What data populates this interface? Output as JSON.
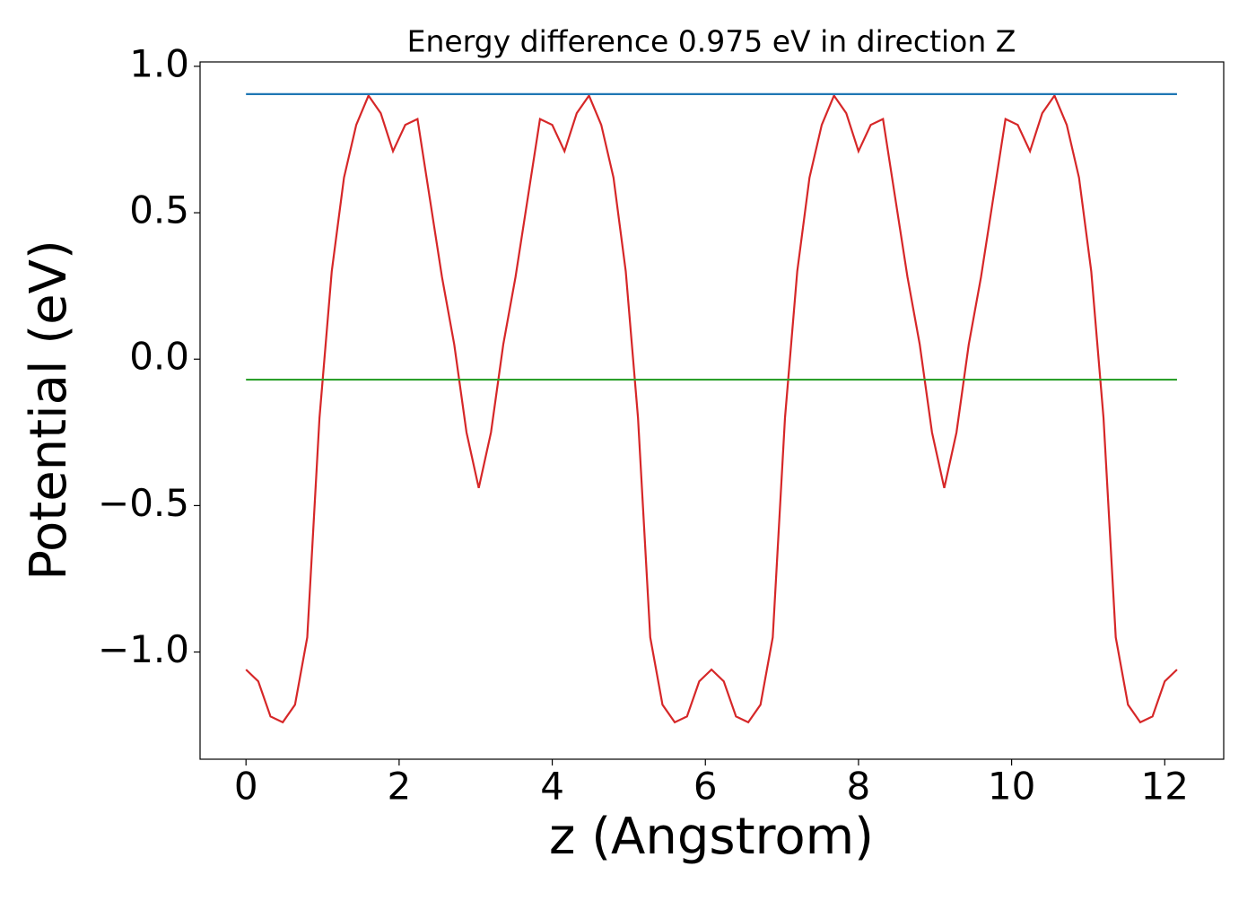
{
  "chart_data": {
    "type": "line",
    "title": "Energy difference 0.975 eV in direction Z",
    "xlabel": "z (Angstrom)",
    "ylabel": "Potential (eV)",
    "xlim": [
      -0.6,
      12.77
    ],
    "ylim": [
      -1.366,
      1.015
    ],
    "xticks": [
      0,
      2,
      4,
      6,
      8,
      10,
      12
    ],
    "yticks": [
      {
        "value": -1,
        "label": "−1.0"
      },
      {
        "value": -0.5,
        "label": "−0.5"
      },
      {
        "value": 0,
        "label": "0.0"
      },
      0.5,
      {
        "value": 1,
        "label": "1.0"
      }
    ],
    "series": [
      {
        "color": "#d62728",
        "x": [
          0,
          0.16,
          0.32,
          0.48,
          0.64,
          0.8,
          0.96,
          1.12,
          1.28,
          1.44,
          1.6,
          1.76,
          1.92,
          2.08,
          2.24,
          2.4,
          2.56,
          2.72,
          2.88,
          3.04,
          3.2,
          3.36,
          3.52,
          3.68,
          3.84,
          4.0,
          4.16,
          4.32,
          4.48,
          4.64,
          4.8,
          4.96,
          5.12,
          5.28,
          5.44,
          5.6,
          5.76,
          5.92,
          6.08,
          6.24,
          6.4,
          6.56,
          6.72,
          6.88,
          7.04,
          7.2,
          7.36,
          7.52,
          7.68,
          7.84,
          8.0,
          8.16,
          8.32,
          8.48,
          8.64,
          8.8,
          8.96,
          9.12,
          9.28,
          9.44,
          9.6,
          9.76,
          9.92,
          10.08,
          10.24,
          10.4,
          10.56,
          10.72,
          10.88,
          11.04,
          11.2,
          11.36,
          11.52,
          11.68,
          11.84,
          12.0,
          12.16
        ],
        "values": [
          -1.06,
          -1.1,
          -1.22,
          -1.24,
          -1.18,
          -0.95,
          -0.2,
          0.3,
          0.62,
          0.8,
          0.9,
          0.84,
          0.71,
          0.8,
          0.82,
          0.55,
          0.28,
          0.05,
          -0.25,
          -0.44,
          -0.25,
          0.05,
          0.28,
          0.55,
          0.82,
          0.8,
          0.71,
          0.84,
          0.9,
          0.8,
          0.62,
          0.3,
          -0.2,
          -0.95,
          -1.18,
          -1.24,
          -1.22,
          -1.1,
          -1.06,
          -1.1,
          -1.22,
          -1.24,
          -1.18,
          -0.95,
          -0.2,
          0.3,
          0.62,
          0.8,
          0.9,
          0.84,
          0.71,
          0.8,
          0.82,
          0.55,
          0.28,
          0.05,
          -0.25,
          -0.44,
          -0.25,
          0.05,
          0.28,
          0.55,
          0.82,
          0.8,
          0.71,
          0.84,
          0.9,
          0.8,
          0.62,
          0.3,
          -0.2,
          -0.95,
          -1.18,
          -1.24,
          -1.22,
          -1.1,
          -1.06
        ]
      },
      {
        "color": "#1f77b4",
        "x": [
          0,
          12.16
        ],
        "values": [
          0.905,
          0.905
        ]
      },
      {
        "color": "#2ca02c",
        "x": [
          0,
          12.16
        ],
        "values": [
          -0.07,
          -0.07
        ]
      }
    ]
  }
}
